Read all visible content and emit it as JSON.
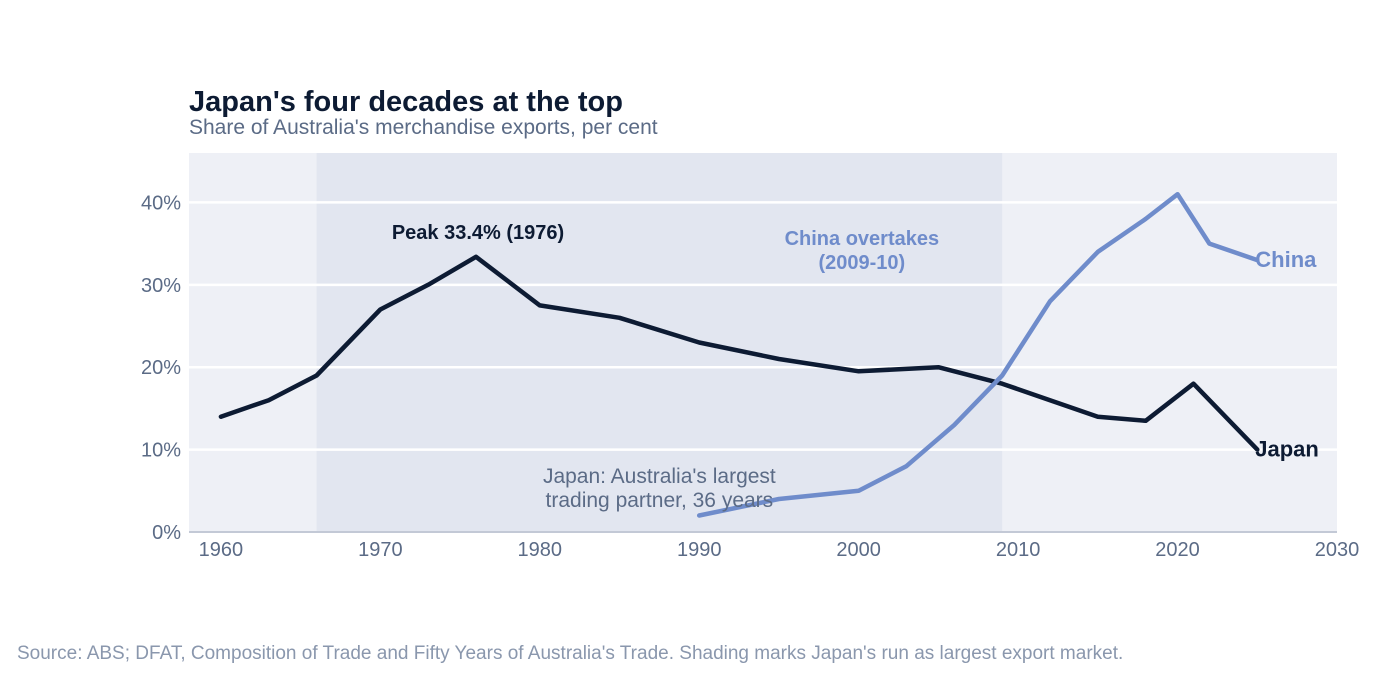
{
  "chart_data": {
    "type": "line",
    "title": "Japan's four decades at the top",
    "subtitle": "Share of Australia's merchandise exports, per cent",
    "source": "Source: ABS; DFAT, Composition of Trade and Fifty Years of Australia's Trade. Shading marks Japan's run as largest export market.",
    "xlim": [
      1958,
      2030
    ],
    "ylim": [
      0,
      46
    ],
    "x_ticks": [
      1960,
      1970,
      1980,
      1990,
      2000,
      2010,
      2020,
      2030
    ],
    "y_ticks": [
      0,
      10,
      20,
      30,
      40
    ],
    "y_tick_labels": [
      "0%",
      "10%",
      "20%",
      "30%",
      "40%"
    ],
    "grid": "horizontal",
    "shaded_period": {
      "start": 1966,
      "end": 2009
    },
    "series": [
      {
        "name": "Japan",
        "color": "#0d1b33",
        "x": [
          1960,
          1963,
          1966,
          1970,
          1973,
          1976,
          1980,
          1985,
          1990,
          1995,
          2000,
          2005,
          2009,
          2012,
          2015,
          2018,
          2021,
          2025
        ],
        "y": [
          14,
          16,
          19,
          27,
          30,
          33.4,
          27.5,
          26,
          23,
          21,
          19.5,
          20,
          18,
          16,
          14,
          13.5,
          18,
          10
        ]
      },
      {
        "name": "China",
        "color": "#6f8ccb",
        "x": [
          1990,
          1995,
          2000,
          2003,
          2006,
          2009,
          2012,
          2015,
          2018,
          2020,
          2022,
          2025
        ],
        "y": [
          2,
          4,
          5,
          8,
          13,
          19,
          28,
          34,
          38,
          41,
          35,
          33
        ]
      }
    ],
    "annotations": [
      {
        "text": "Peak 33.4% (1976)",
        "x": 1976,
        "y": 33.4
      },
      {
        "lines": [
          "China overtakes",
          "(2009-10)"
        ],
        "x": 2000.2,
        "y": 34
      },
      {
        "lines": [
          "Japan: Australia's largest",
          "trading partner, 36 years"
        ],
        "x": 1987.5,
        "y": 5
      }
    ]
  }
}
